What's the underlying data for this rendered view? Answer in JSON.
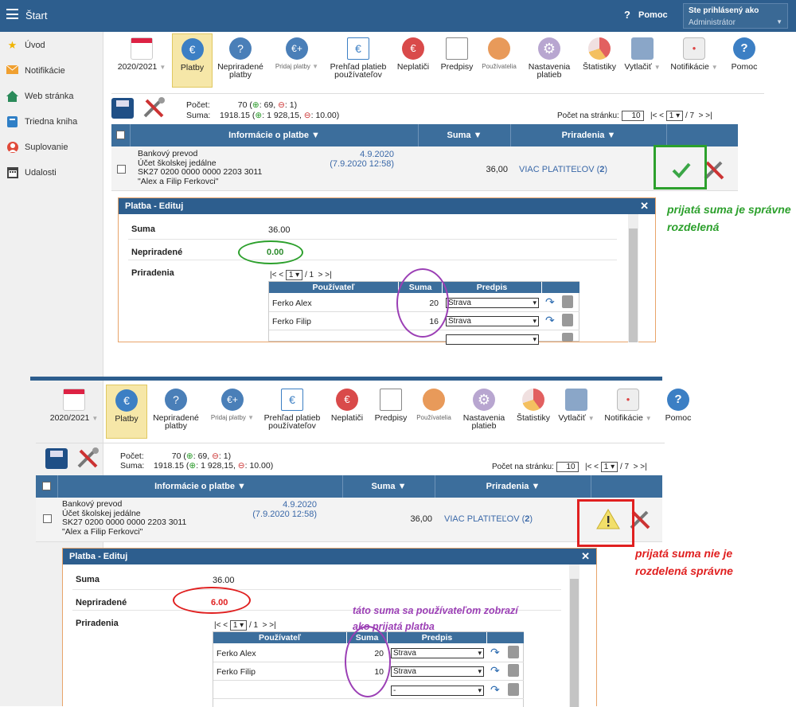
{
  "header": {
    "title": "Štart",
    "help_label": "Pomoc",
    "login_label": "Ste prihlásený ako",
    "login_role": "Administrátor"
  },
  "sidebar": {
    "items": [
      {
        "label": "Úvod",
        "icon": "star-icon"
      },
      {
        "label": "Notifikácie",
        "icon": "envelope-icon"
      },
      {
        "label": "Web stránka",
        "icon": "house-icon"
      },
      {
        "label": "Triedna kniha",
        "icon": "book-icon"
      },
      {
        "label": "Suplovanie",
        "icon": "person-icon"
      },
      {
        "label": "Udalosti",
        "icon": "calendar-icon"
      }
    ]
  },
  "toolbar": {
    "year": "2020/2021",
    "buttons": [
      "Platby",
      "Nepriradené platby",
      "Pridaj platby",
      "Prehľad platieb používateľov",
      "Neplatiči",
      "Predpisy",
      "Používatelia",
      "Nastavenia platieb",
      "Štatistiky",
      "Vytlačiť",
      "Notifikácie",
      "Pomoc"
    ]
  },
  "summary": {
    "count_label": "Počet:",
    "count_value": "70",
    "count_plus": "69,",
    "count_minus": "1)",
    "sum_label": "Suma:",
    "sum_value": "1918.15",
    "sum_plus": "1 928,15,",
    "sum_minus": "10.00)",
    "per_page_label": "Počet na stránku:",
    "per_page": "10",
    "page": "1",
    "pages": "/ 7"
  },
  "table": {
    "col_info": "Informácie o platbe",
    "col_sum": "Suma",
    "col_assign": "Priradenia"
  },
  "payment": {
    "line1": "Bankový prevod",
    "line2": "Účet školskej jedálne",
    "line3": "SK27 0200 0000 0000 2203 3011",
    "line4": "\"Alex a Filip Ferkovci\"",
    "date": "4.9.2020",
    "date2": "(7.9.2020 12:58)",
    "sum": "36,00",
    "assign": "VIAC PLATITEĽOV",
    "assign_count": "2"
  },
  "dialog": {
    "title": "Platba - Edituj",
    "sum_label": "Suma",
    "sum": "36.00",
    "unassigned_label": "Nepriradené",
    "assign_label": "Priradenia",
    "pager_page": "1",
    "pager_total": "/ 1",
    "col_user": "Používateľ",
    "col_sum": "Suma",
    "col_rule": "Predpis"
  },
  "top": {
    "unassigned": "0.00",
    "rows": [
      {
        "user": "Ferko Alex",
        "sum": "20",
        "rule": "Strava"
      },
      {
        "user": "Ferko Filip",
        "sum": "16",
        "rule": "Strava"
      },
      {
        "user": "",
        "sum": "",
        "rule": ""
      }
    ],
    "annotation": "prijatá suma je správne rozdelená"
  },
  "bottom": {
    "unassigned": "6.00",
    "rows": [
      {
        "user": "Ferko Alex",
        "sum": "20",
        "rule": "Strava"
      },
      {
        "user": "Ferko Filip",
        "sum": "10",
        "rule": "Strava"
      },
      {
        "user": "",
        "sum": "",
        "rule": "-"
      }
    ],
    "annotation": "prijatá suma nie je rozdelená správne",
    "note": "táto suma sa používateľom zobrazí ako prijatá platba"
  },
  "colors": {
    "header": "#2d5e8e",
    "ok": "#2ca02c",
    "warn": "#e02020",
    "note": "#9b3fb5"
  }
}
